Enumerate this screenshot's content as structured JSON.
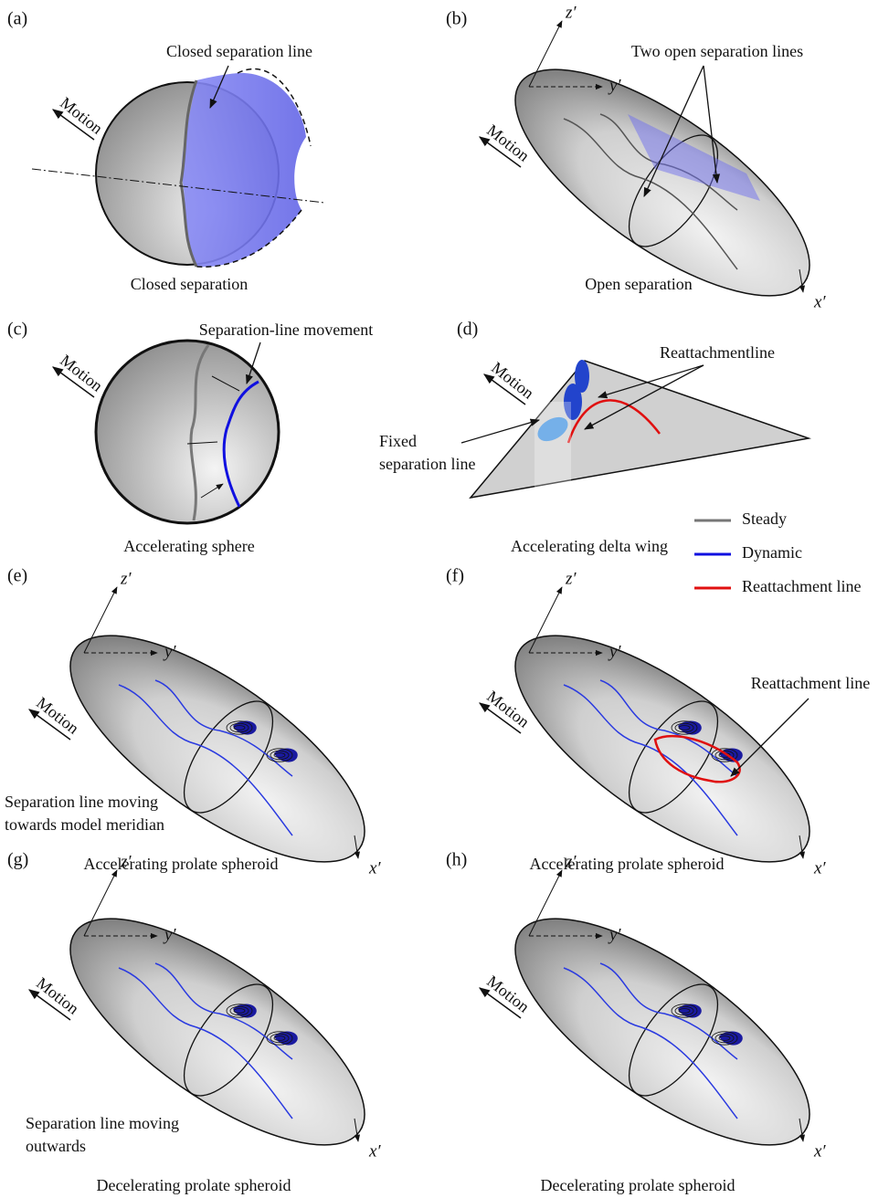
{
  "panels": [
    {
      "label": "(a)",
      "caption": "Closed separation",
      "motion": "Motion",
      "annotations": [
        [
          "Closed separation line"
        ]
      ]
    },
    {
      "label": "(b)",
      "caption": "Open separation",
      "motion": "Motion",
      "annotations": [
        [
          "Two open separation lines"
        ]
      ],
      "axes": [
        "x′",
        "y′",
        "z′"
      ]
    },
    {
      "label": "(c)",
      "caption": "Accelerating sphere",
      "motion": "Motion",
      "annotations": [
        [
          "Separation-line movement"
        ]
      ]
    },
    {
      "label": "(d)",
      "caption": "Accelerating delta wing",
      "motion": "Motion",
      "annotations": [
        [
          "Reattachmentline"
        ],
        [
          "Fixed",
          "separation line"
        ]
      ]
    },
    {
      "label": "(e)",
      "caption": "Accelerating prolate spheroid",
      "motion": "Motion",
      "annotations": [
        [
          "Separation line moving",
          "towards model meridian"
        ]
      ],
      "axes": [
        "x′",
        "y′",
        "z′"
      ]
    },
    {
      "label": "(f)",
      "caption": "Accelerating prolate spheroid",
      "motion": "Motion",
      "annotations": [
        [
          "Reattachment line"
        ]
      ],
      "axes": [
        "x′",
        "y′",
        "z′"
      ]
    },
    {
      "label": "(g)",
      "caption": "Decelerating prolate spheroid",
      "motion": "Motion",
      "annotations": [
        [
          "Separation line moving",
          "outwards"
        ]
      ],
      "axes": [
        "x′",
        "y′",
        "z′"
      ]
    },
    {
      "label": "(h)",
      "caption": "Decelerating prolate spheroid",
      "motion": "Motion",
      "annotations": [],
      "axes": [
        "x′",
        "y′",
        "z′"
      ]
    }
  ],
  "legend": [
    {
      "label": "Steady",
      "color": "#777777"
    },
    {
      "label": "Dynamic",
      "color": "#1010e0"
    },
    {
      "label": "Reattachment line",
      "color": "#e01010"
    }
  ]
}
